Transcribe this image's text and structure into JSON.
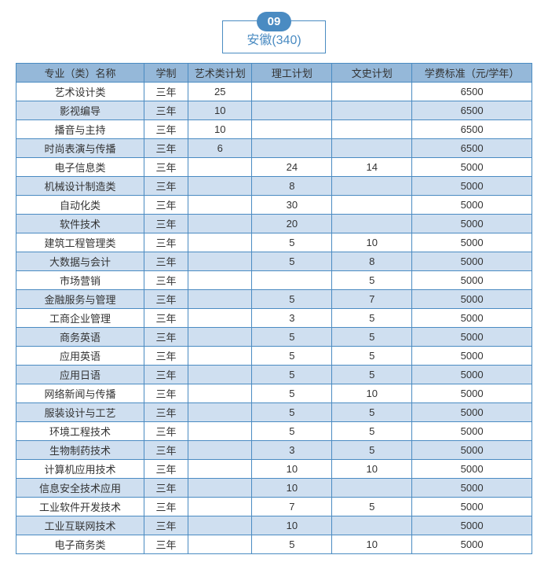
{
  "badge_number": "09",
  "title": "安徽(340)",
  "table": {
    "columns": [
      "专业（类）名称",
      "学制",
      "艺术类计划",
      "理工计划",
      "文史计划",
      "学费标准（元/学年）"
    ],
    "rows": [
      [
        "艺术设计类",
        "三年",
        "25",
        "",
        "",
        "6500"
      ],
      [
        "影视编导",
        "三年",
        "10",
        "",
        "",
        "6500"
      ],
      [
        "播音与主持",
        "三年",
        "10",
        "",
        "",
        "6500"
      ],
      [
        "时尚表演与传播",
        "三年",
        "6",
        "",
        "",
        "6500"
      ],
      [
        "电子信息类",
        "三年",
        "",
        "24",
        "14",
        "5000"
      ],
      [
        "机械设计制造类",
        "三年",
        "",
        "8",
        "",
        "5000"
      ],
      [
        "自动化类",
        "三年",
        "",
        "30",
        "",
        "5000"
      ],
      [
        "软件技术",
        "三年",
        "",
        "20",
        "",
        "5000"
      ],
      [
        "建筑工程管理类",
        "三年",
        "",
        "5",
        "10",
        "5000"
      ],
      [
        "大数据与会计",
        "三年",
        "",
        "5",
        "8",
        "5000"
      ],
      [
        "市场营销",
        "三年",
        "",
        "",
        "5",
        "5000"
      ],
      [
        "金融服务与管理",
        "三年",
        "",
        "5",
        "7",
        "5000"
      ],
      [
        "工商企业管理",
        "三年",
        "",
        "3",
        "5",
        "5000"
      ],
      [
        "商务英语",
        "三年",
        "",
        "5",
        "5",
        "5000"
      ],
      [
        "应用英语",
        "三年",
        "",
        "5",
        "5",
        "5000"
      ],
      [
        "应用日语",
        "三年",
        "",
        "5",
        "5",
        "5000"
      ],
      [
        "网络新闻与传播",
        "三年",
        "",
        "5",
        "10",
        "5000"
      ],
      [
        "服装设计与工艺",
        "三年",
        "",
        "5",
        "5",
        "5000"
      ],
      [
        "环境工程技术",
        "三年",
        "",
        "5",
        "5",
        "5000"
      ],
      [
        "生物制药技术",
        "三年",
        "",
        "3",
        "5",
        "5000"
      ],
      [
        "计算机应用技术",
        "三年",
        "",
        "10",
        "10",
        "5000"
      ],
      [
        "信息安全技术应用",
        "三年",
        "",
        "10",
        "",
        "5000"
      ],
      [
        "工业软件开发技术",
        "三年",
        "",
        "7",
        "5",
        "5000"
      ],
      [
        "工业互联网技术",
        "三年",
        "",
        "10",
        "",
        "5000"
      ],
      [
        "电子商务类",
        "三年",
        "",
        "5",
        "10",
        "5000"
      ]
    ]
  },
  "colors": {
    "header_bg": "#95b8d9",
    "alt_row_bg": "#cfdff0",
    "border": "#4a8bc2",
    "badge_bg": "#4a8bc2",
    "title_text": "#4a8bc2"
  }
}
